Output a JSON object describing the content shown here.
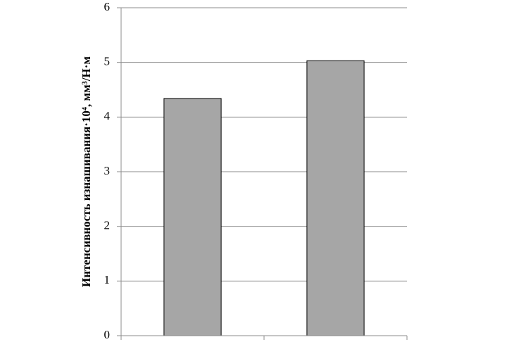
{
  "chart_data": {
    "type": "bar",
    "y_label": "Интенсивность изнашивания·10⁴, мм³/Н·м",
    "categories": [
      null,
      null
    ],
    "values": [
      4.34,
      5.03
    ],
    "color": "#a6a6a6",
    "ylim": [
      0,
      6
    ],
    "yticks": [
      0,
      1,
      2,
      3,
      4,
      5,
      6
    ],
    "grid": true
  }
}
